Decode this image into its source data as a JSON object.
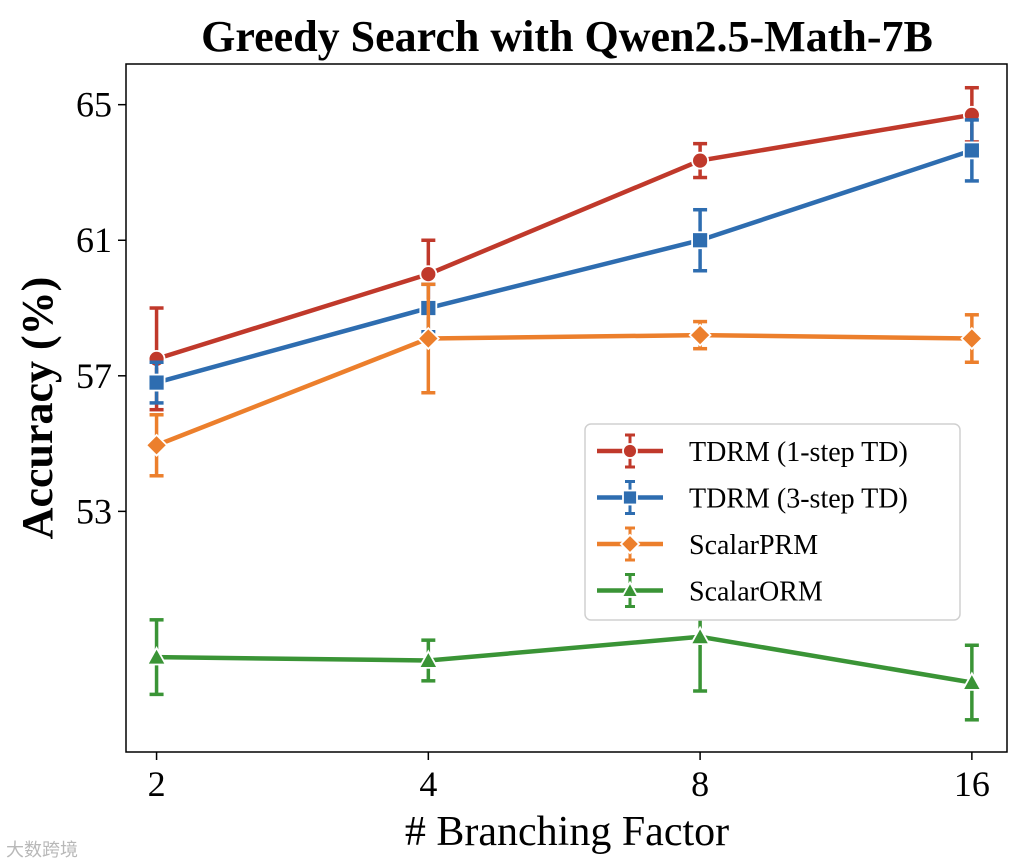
{
  "chart_data": {
    "type": "line",
    "title": "Greedy Search with Qwen2.5-Math-7B",
    "xlabel": "# Branching Factor",
    "ylabel": "Accuracy (%)",
    "x": [
      2,
      4,
      8,
      16
    ],
    "x_scale": "log2",
    "xlim": [
      1.85,
      17.5
    ],
    "ylim": [
      45.9,
      66.2
    ],
    "y_ticks": [
      53,
      57,
      61,
      65
    ],
    "grid": false,
    "legend_position": "center-right",
    "series": [
      {
        "name": "TDRM (1-step TD)",
        "color": "#C0392B",
        "marker": "circle",
        "values": [
          57.5,
          60.0,
          63.35,
          64.7
        ],
        "error": [
          1.5,
          1.0,
          0.5,
          0.8
        ]
      },
      {
        "name": "TDRM (3-step TD)",
        "color": "#2E6DB0",
        "marker": "square",
        "values": [
          56.8,
          59.0,
          61.0,
          63.65
        ],
        "error": [
          0.6,
          0.7,
          0.9,
          0.9
        ]
      },
      {
        "name": "ScalarPRM",
        "color": "#EC7F2C",
        "marker": "diamond",
        "values": [
          54.95,
          58.1,
          58.2,
          58.1
        ],
        "error": [
          0.9,
          1.6,
          0.4,
          0.7
        ]
      },
      {
        "name": "ScalarORM",
        "color": "#3A9436",
        "marker": "triangle",
        "values": [
          48.7,
          48.6,
          49.3,
          47.95
        ],
        "error": [
          1.1,
          0.6,
          1.6,
          1.1
        ]
      }
    ]
  },
  "watermark": "大数跨境"
}
